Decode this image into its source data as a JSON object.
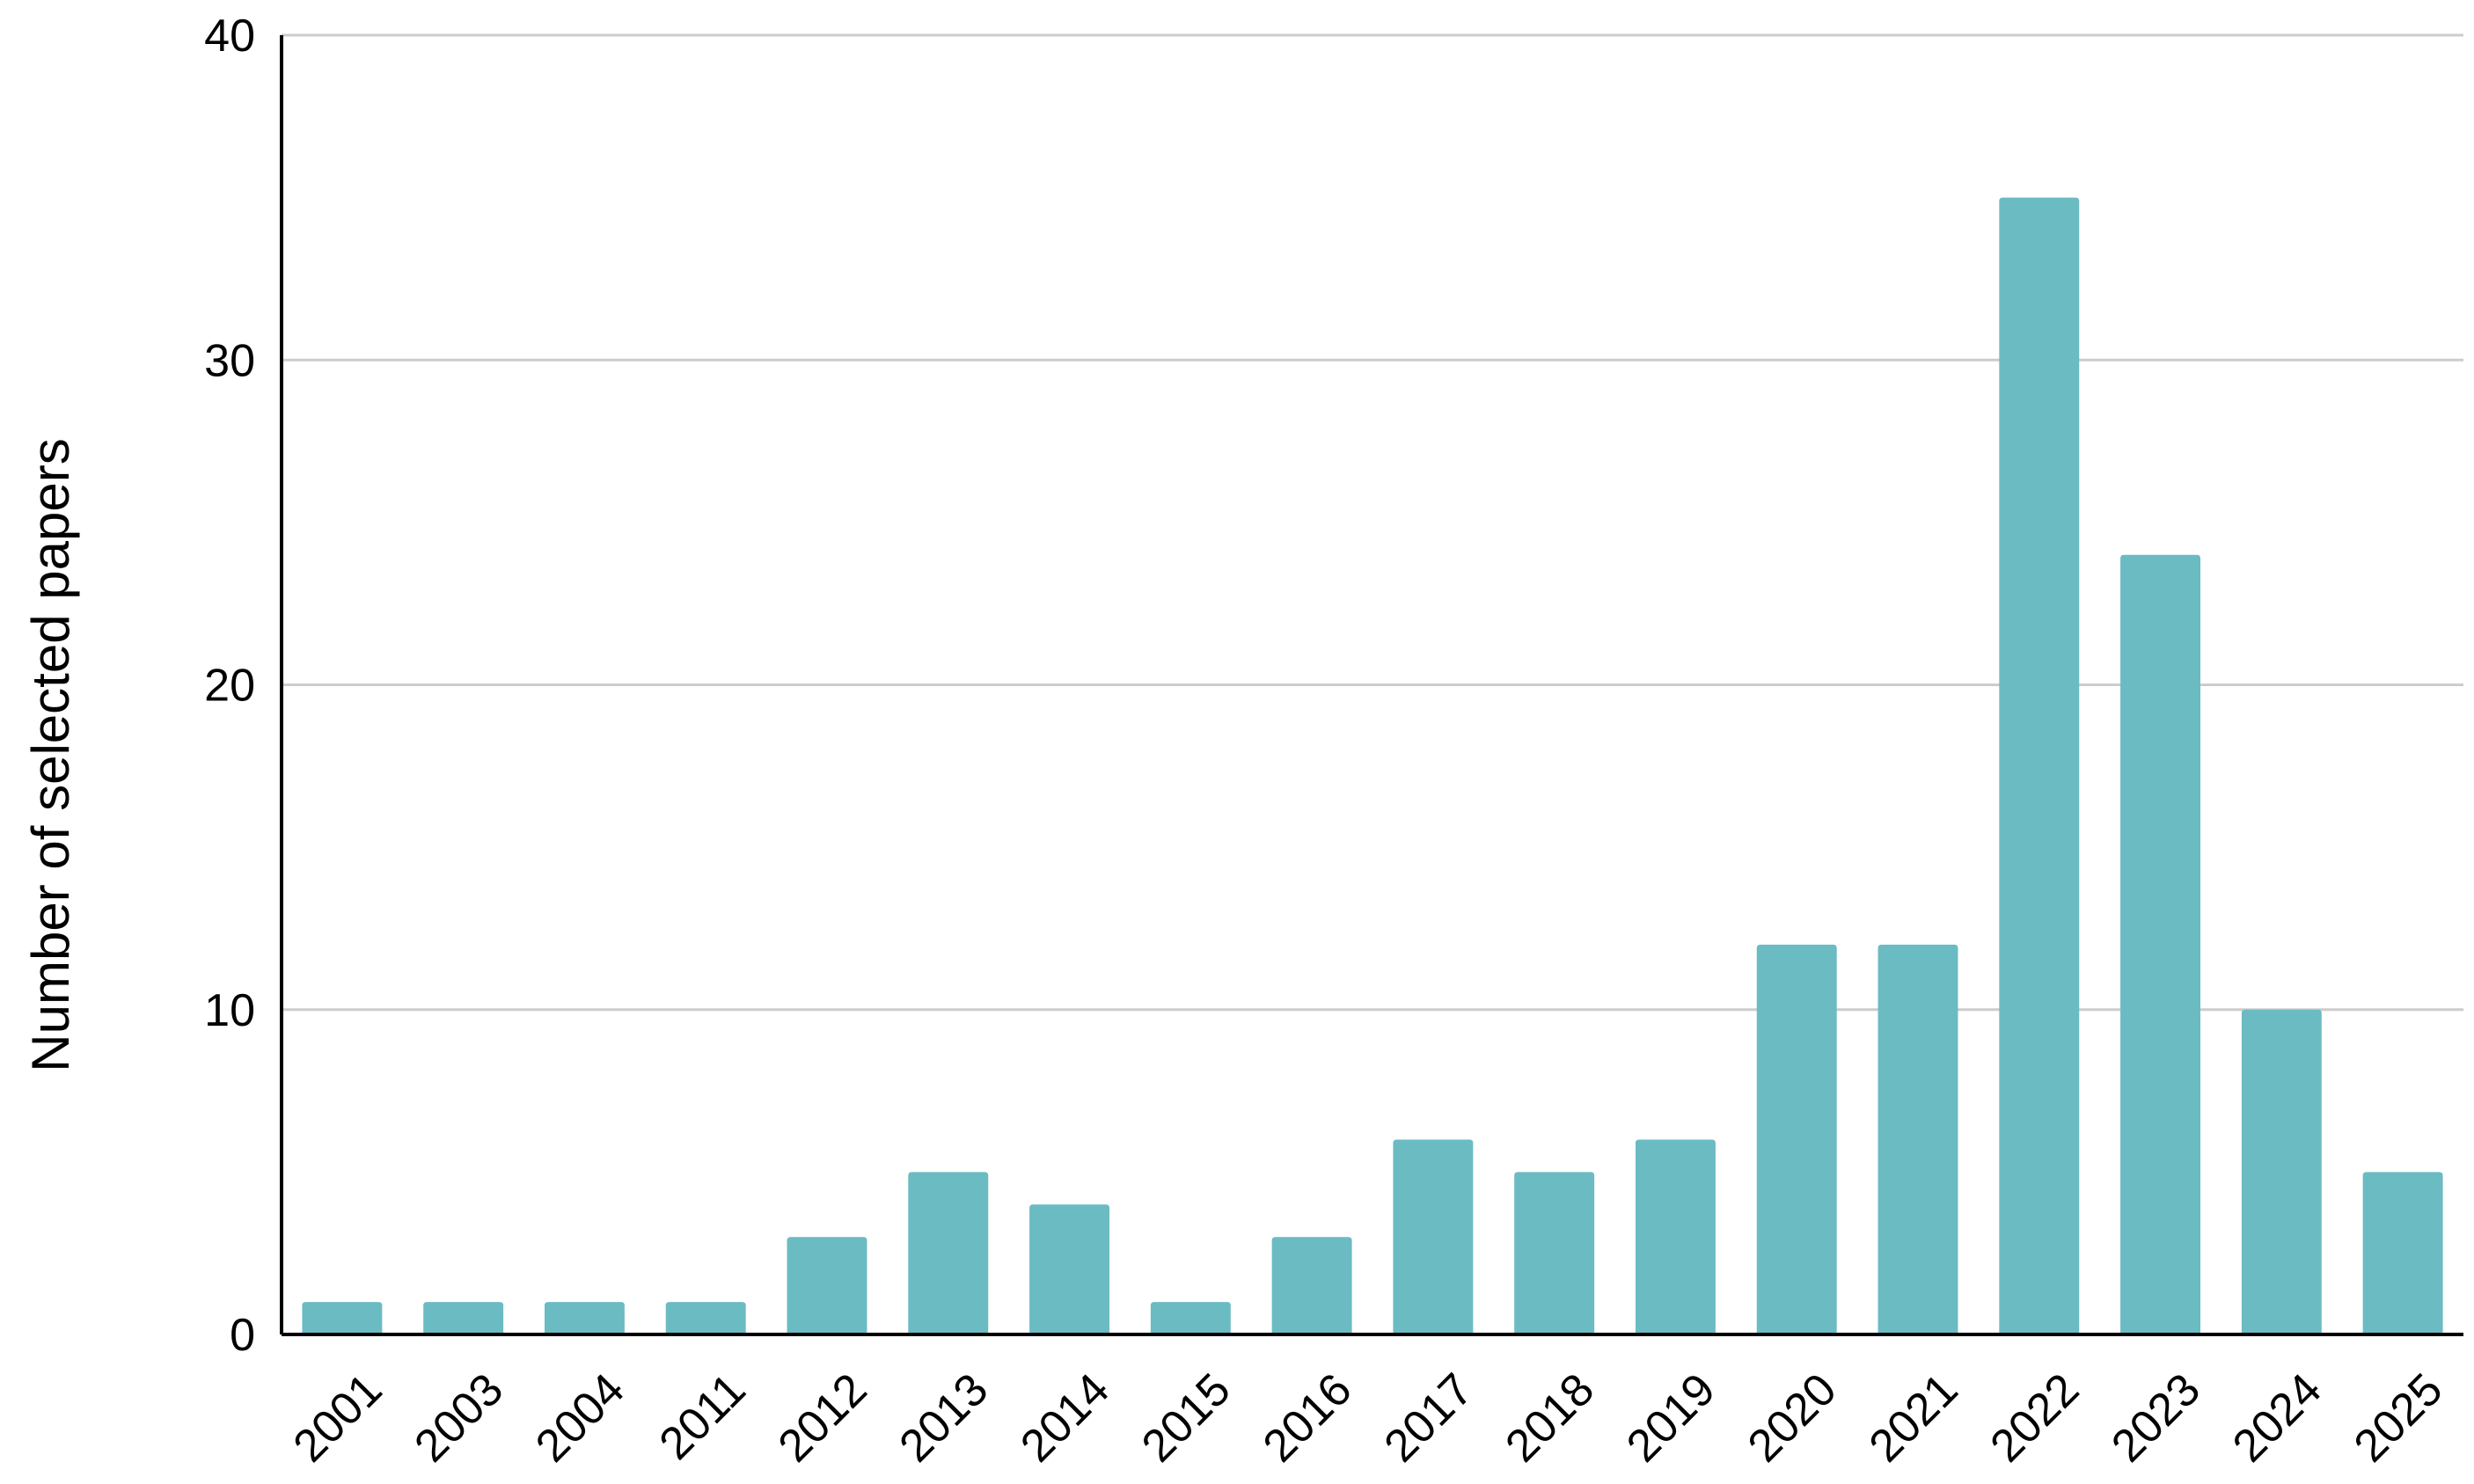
{
  "chart_data": {
    "type": "bar",
    "title": "",
    "xlabel": "",
    "ylabel": "Number of selected papers",
    "categories": [
      "2001",
      "2003",
      "2004",
      "2011",
      "2012",
      "2013",
      "2014",
      "2015",
      "2016",
      "2017",
      "2018",
      "2019",
      "2020",
      "2021",
      "2022",
      "2023",
      "2024",
      "2025"
    ],
    "values": [
      1,
      1,
      1,
      1,
      3,
      5,
      4,
      1,
      3,
      6,
      5,
      6,
      12,
      12,
      35,
      24,
      10,
      5
    ],
    "ylim": [
      0,
      40
    ],
    "yticks": [
      "0",
      "10",
      "20",
      "30",
      "40"
    ],
    "grid": true,
    "legend": "none",
    "colors": {
      "bar": "#6bbbc3",
      "grid": "#cccccc",
      "axis": "#000000"
    }
  }
}
